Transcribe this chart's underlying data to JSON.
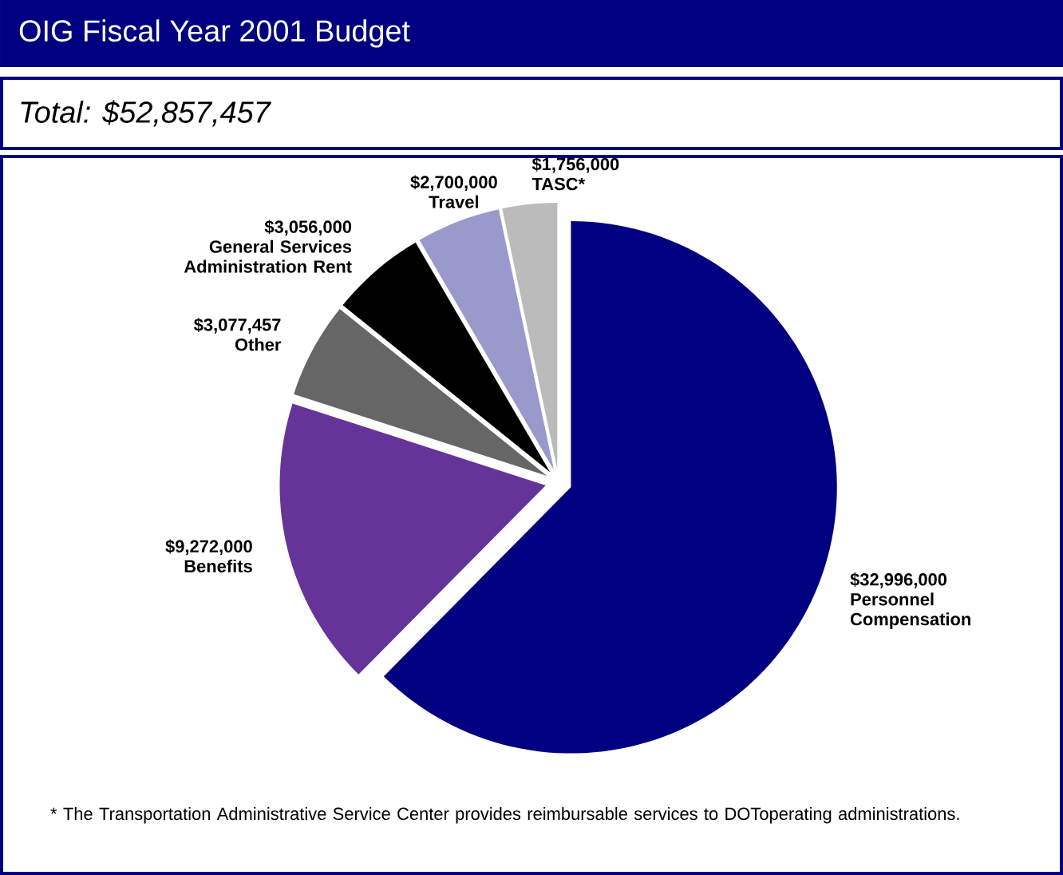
{
  "chart_data": {
    "type": "pie",
    "title": "OIG Fiscal Year 2001 Budget",
    "subtitle": "Total: $52,857,457",
    "categories": [
      "Personnel Compensation",
      "Benefits",
      "Other",
      "General Services Administration Rent",
      "Travel",
      "TASC*"
    ],
    "values": [
      32996000,
      9272000,
      3077457,
      3056000,
      2700000,
      1756000
    ],
    "colors": [
      "#000080",
      "#663399",
      "#666666",
      "#000000",
      "#9999cc",
      "#bbbbbb"
    ],
    "value_labels": [
      "$32,996,000",
      "$9,272,000",
      "$3,077,457",
      "$3,056,000",
      "$2,700,000",
      "$1,756,000"
    ],
    "annotations": [
      "* The Transportation Administrative Service Center provides reimbursable services to DOToperating administrations."
    ]
  }
}
